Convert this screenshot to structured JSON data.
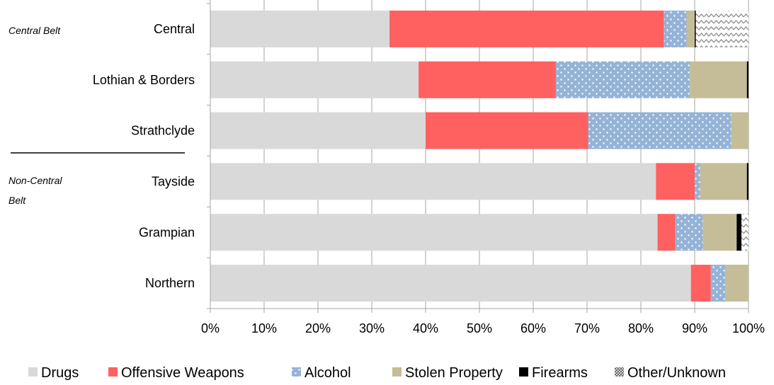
{
  "chart_data": {
    "type": "bar",
    "orientation": "horizontal",
    "stacked": true,
    "percent_stacked": true,
    "categories": [
      "Central",
      "Lothian & Borders",
      "Strathclyde",
      "Tayside",
      "Grampian",
      "Northern"
    ],
    "groups": [
      {
        "label": "Central Belt",
        "categories": [
          "Central",
          "Lothian & Borders",
          "Strathclyde"
        ]
      },
      {
        "label": "Non-Central Belt",
        "categories": [
          "Tayside",
          "Grampian",
          "Northern"
        ]
      }
    ],
    "series": [
      {
        "name": "Drugs",
        "color": "#d9d9d9",
        "pattern": "solid",
        "values": [
          33.3,
          38.7,
          40.0,
          82.8,
          83.1,
          89.3
        ]
      },
      {
        "name": "Offensive Weapons",
        "color": "#ff6060",
        "pattern": "solid",
        "values": [
          51.0,
          25.5,
          30.2,
          7.2,
          3.3,
          3.7
        ]
      },
      {
        "name": "Alcohol",
        "color": "#95b3d7",
        "pattern": "dots",
        "values": [
          4.2,
          24.9,
          26.6,
          1.0,
          5.1,
          2.7
        ]
      },
      {
        "name": "Stolen Property",
        "color": "#c4bd97",
        "pattern": "solid",
        "values": [
          1.5,
          10.6,
          3.2,
          8.7,
          6.3,
          4.3
        ]
      },
      {
        "name": "Firearms",
        "color": "#000000",
        "pattern": "solid",
        "values": [
          0.2,
          0.3,
          0.0,
          0.3,
          0.9,
          0.0
        ]
      },
      {
        "name": "Other/Unknown",
        "color": "#a6a6a6",
        "pattern": "wave",
        "values": [
          9.8,
          0.0,
          0.0,
          0.0,
          1.3,
          0.0
        ]
      }
    ],
    "xlim": [
      0,
      100
    ],
    "x_ticks": [
      "0%",
      "10%",
      "20%",
      "30%",
      "40%",
      "50%",
      "60%",
      "70%",
      "80%",
      "90%",
      "100%"
    ],
    "grid": true,
    "legend_position": "bottom",
    "title": "",
    "xlabel": "",
    "ylabel": ""
  }
}
